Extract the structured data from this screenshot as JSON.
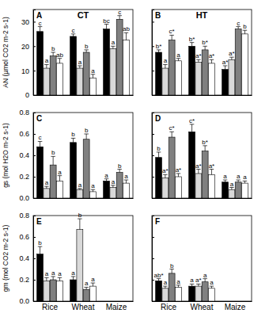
{
  "chart_data": [
    {
      "type": "bar",
      "title": "CT",
      "subtitle": "A",
      "y_label": "AN (µmol CO2 m-2 s-1)",
      "categories": [
        "Rice",
        "Wheat",
        "Maize"
      ],
      "ylim": [
        0,
        35
      ],
      "yticks": [
        0,
        10,
        20,
        30
      ],
      "tick_labels": "y",
      "series": [
        {
          "color": "#000000",
          "values": [
            26,
            24,
            27
          ],
          "errors": [
            2,
            1,
            2
          ],
          "annotations": [
            "c",
            "c",
            "bc"
          ]
        },
        {
          "color": "#d9d9d9",
          "values": [
            11,
            11,
            19
          ],
          "errors": [
            1.5,
            1,
            1
          ],
          "annotations": [
            "a",
            "a",
            "a"
          ]
        },
        {
          "color": "#808080",
          "values": [
            16,
            17.5,
            31
          ],
          "errors": [
            1.5,
            1,
            1.5
          ],
          "annotations": [
            "b",
            "b",
            "c"
          ]
        },
        {
          "color": "#ffffff",
          "values": [
            13,
            7,
            22.5
          ],
          "errors": [
            2,
            1.5,
            3
          ],
          "annotations": [
            "ab",
            "a",
            "ab"
          ]
        }
      ]
    },
    {
      "type": "bar",
      "title": "HT",
      "subtitle": "B",
      "categories": [
        "Rice",
        "Wheat",
        "Maize"
      ],
      "ylim": [
        0,
        35
      ],
      "yticks": [
        0,
        10,
        20,
        30
      ],
      "tick_labels": false,
      "series": [
        {
          "color": "#000000",
          "values": [
            17.5,
            20,
            10.5
          ],
          "errors": [
            1,
            1.5,
            1.5
          ],
          "annotations": [
            "b*",
            "b*",
            "a*"
          ]
        },
        {
          "color": "#d9d9d9",
          "values": [
            11,
            13.5,
            14.5
          ],
          "errors": [
            1.5,
            1,
            1
          ],
          "annotations": [
            "a",
            "a*",
            "a*"
          ]
        },
        {
          "color": "#808080",
          "values": [
            22.5,
            18.5,
            27
          ],
          "errors": [
            2,
            1.5,
            1
          ],
          "annotations": [
            "c*",
            "b*",
            "c"
          ]
        },
        {
          "color": "#ffffff",
          "values": [
            14,
            13,
            25
          ],
          "errors": [
            1,
            1.5,
            1.5
          ],
          "annotations": [
            "a",
            "a*",
            "b"
          ]
        }
      ]
    },
    {
      "type": "bar",
      "subtitle": "C",
      "y_label": "gs (mol H2O m-2 s-1)",
      "categories": [
        "Rice",
        "Wheat",
        "Maize"
      ],
      "ylim": [
        0,
        0.8
      ],
      "yticks": [
        {
          "value": 0,
          "label": "0.0"
        },
        0.2,
        0.4,
        0.6,
        0.8
      ],
      "tick_labels": "y",
      "series": [
        {
          "color": "#000000",
          "values": [
            0.48,
            0.52,
            0.16
          ],
          "errors": [
            0.05,
            0.04,
            0.02
          ],
          "annotations": [
            "c",
            "b",
            "a"
          ]
        },
        {
          "color": "#d9d9d9",
          "values": [
            0.09,
            0.08,
            0.1
          ],
          "errors": [
            0.02,
            0.01,
            0.02
          ],
          "annotations": [
            "a",
            "a",
            "a"
          ]
        },
        {
          "color": "#808080",
          "values": [
            0.31,
            0.55,
            0.24
          ],
          "errors": [
            0.08,
            0.05,
            0.03
          ],
          "annotations": [
            "b",
            "b",
            "b"
          ]
        },
        {
          "color": "#ffffff",
          "values": [
            0.16,
            0.06,
            0.14
          ],
          "errors": [
            0.05,
            0.02,
            0.03
          ],
          "annotations": [
            "a",
            "a",
            "a"
          ]
        }
      ]
    },
    {
      "type": "bar",
      "subtitle": "D",
      "categories": [
        "Rice",
        "Wheat",
        "Maize"
      ],
      "ylim": [
        0,
        0.8
      ],
      "yticks": [
        {
          "value": 0,
          "label": "0.0"
        },
        0.2,
        0.4,
        0.6,
        0.8
      ],
      "tick_labels": false,
      "series": [
        {
          "color": "#000000",
          "values": [
            0.38,
            0.62,
            0.15
          ],
          "errors": [
            0.05,
            0.07,
            0.02
          ],
          "annotations": [
            "b",
            "c*",
            "a"
          ]
        },
        {
          "color": "#d9d9d9",
          "values": [
            0.19,
            0.23,
            0.08
          ],
          "errors": [
            0.03,
            0.04,
            0.02
          ],
          "annotations": [
            "a*",
            "a*",
            "a"
          ]
        },
        {
          "color": "#808080",
          "values": [
            0.57,
            0.44,
            0.15
          ],
          "errors": [
            0.05,
            0.05,
            0.02
          ],
          "annotations": [
            "c*",
            "b*",
            "a"
          ]
        },
        {
          "color": "#ffffff",
          "values": [
            0.2,
            0.22,
            0.14
          ],
          "errors": [
            0.03,
            0.05,
            0.02
          ],
          "annotations": [
            "a*",
            "a*",
            "a"
          ]
        }
      ]
    },
    {
      "type": "bar",
      "subtitle": "E",
      "y_label": "gm (mol CO2 m-2 s-1)",
      "categories": [
        "Rice",
        "Wheat",
        "Maize"
      ],
      "ylim": [
        0,
        0.8
      ],
      "yticks": [
        {
          "value": 0,
          "label": "0.0"
        },
        0.2,
        0.4,
        0.6,
        0.8
      ],
      "tick_labels": true,
      "series": [
        {
          "color": "#000000",
          "values": [
            0.44,
            0.2,
            null
          ],
          "errors": [
            0.07,
            0.03,
            null
          ],
          "annotations": [
            "b",
            "a",
            null
          ]
        },
        {
          "color": "#d9d9d9",
          "values": [
            0.19,
            0.67,
            null
          ],
          "errors": [
            0.03,
            0.1,
            null
          ],
          "annotations": [
            "a",
            "b",
            null
          ]
        },
        {
          "color": "#808080",
          "values": [
            0.2,
            0.11,
            null
          ],
          "errors": [
            0.03,
            0.02,
            null
          ],
          "annotations": [
            "a",
            "a",
            null
          ]
        },
        {
          "color": "#ffffff",
          "values": [
            0.19,
            0.14,
            null
          ],
          "errors": [
            0.03,
            0.03,
            null
          ],
          "annotations": [
            "a",
            "a",
            null
          ]
        }
      ]
    },
    {
      "type": "bar",
      "subtitle": "F",
      "categories": [
        "Rice",
        "Wheat",
        "Maize"
      ],
      "ylim": [
        0,
        0.8
      ],
      "yticks": [
        {
          "value": 0,
          "label": "0.0"
        },
        0.2,
        0.4,
        0.6,
        0.8
      ],
      "tick_labels": "x",
      "series": [
        {
          "color": "#000000",
          "values": [
            0.19,
            0.14,
            null
          ],
          "errors": [
            0.02,
            0.02,
            null
          ],
          "annotations": [
            "ab*",
            "a",
            null
          ]
        },
        {
          "color": "#d9d9d9",
          "values": [
            0.12,
            0.14,
            null
          ],
          "errors": [
            0.02,
            0.02,
            null
          ],
          "annotations": [
            "a",
            "a*",
            null
          ]
        },
        {
          "color": "#808080",
          "values": [
            0.26,
            0.18,
            null
          ],
          "errors": [
            0.04,
            0.03,
            null
          ],
          "annotations": [
            "b",
            "a",
            null
          ]
        },
        {
          "color": "#ffffff",
          "values": [
            0.13,
            0.12,
            null
          ],
          "errors": [
            0.02,
            0.02,
            null
          ],
          "annotations": [
            "a",
            "a",
            null
          ]
        }
      ]
    }
  ]
}
